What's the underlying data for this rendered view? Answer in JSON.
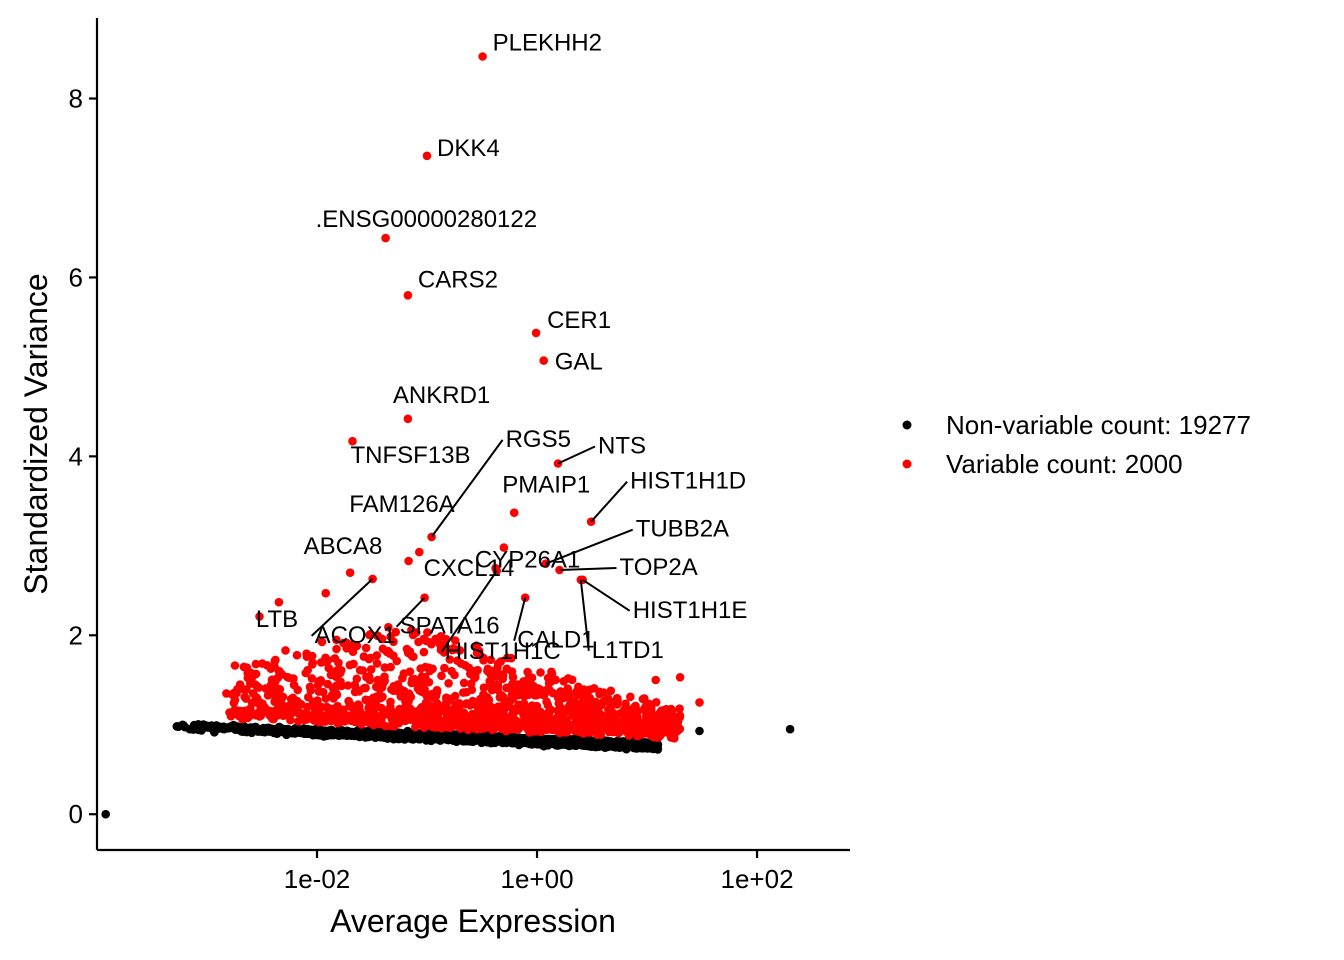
{
  "chart_data": {
    "type": "scatter",
    "xlabel": "Average Expression",
    "ylabel": "Standardized Variance",
    "x_scale": "log10",
    "xlim": [
      0.0001,
      700
    ],
    "ylim": [
      -0.4,
      8.9
    ],
    "x_ticks": [
      {
        "value": 0.01,
        "label": "1e-02"
      },
      {
        "value": 1,
        "label": "1e+00"
      },
      {
        "value": 100,
        "label": "1e+02"
      }
    ],
    "y_ticks": [
      {
        "value": 0,
        "label": "0"
      },
      {
        "value": 2,
        "label": "2"
      },
      {
        "value": 4,
        "label": "4"
      },
      {
        "value": 6,
        "label": "6"
      },
      {
        "value": 8,
        "label": "8"
      }
    ],
    "grid": false,
    "legend_position": "right",
    "series": [
      {
        "name": "Non-variable count: 19277",
        "color": "#000000"
      },
      {
        "name": "Variable count: 2000",
        "color": "#ff0000"
      }
    ],
    "labeled_points": [
      {
        "label": "PLEKHH2",
        "x": 0.32,
        "y": 8.47
      },
      {
        "label": "DKK4",
        "x": 0.1,
        "y": 7.36
      },
      {
        "label": ".ENSG00000280122",
        "x": 0.042,
        "y": 6.44
      },
      {
        "label": "CARS2",
        "x": 0.067,
        "y": 5.8
      },
      {
        "label": "CER1",
        "x": 0.98,
        "y": 5.38
      },
      {
        "label": "GAL",
        "x": 1.15,
        "y": 5.07
      },
      {
        "label": "ANKRD1",
        "x": 0.067,
        "y": 4.42
      },
      {
        "label": "TNFSF13B",
        "x": 0.021,
        "y": 4.17
      },
      {
        "label": "NTS",
        "x": 1.55,
        "y": 3.92
      },
      {
        "label": "RGS5",
        "x": 0.11,
        "y": 3.1
      },
      {
        "label": "FAM126A",
        "x": 0.085,
        "y": 2.93
      },
      {
        "label": "PMAIP1",
        "x": 0.62,
        "y": 3.37
      },
      {
        "label": "HIST1H1D",
        "x": 3.1,
        "y": 3.27
      },
      {
        "label": "CYP26A1",
        "x": 0.5,
        "y": 2.98
      },
      {
        "label": "TUBB2A",
        "x": 1.2,
        "y": 2.8
      },
      {
        "label": "ABCA8",
        "x": 0.068,
        "y": 2.83
      },
      {
        "label": "CXCL14",
        "x": 0.42,
        "y": 2.75
      },
      {
        "label": "TOP2A",
        "x": 1.6,
        "y": 2.73
      },
      {
        "label": "LTB",
        "x": 0.0045,
        "y": 2.37
      },
      {
        "label": "SPATA16",
        "x": 0.095,
        "y": 2.42
      },
      {
        "label": "CALD1",
        "x": 0.78,
        "y": 2.42
      },
      {
        "label": "HIST1H1E",
        "x": 2.6,
        "y": 2.62
      },
      {
        "label": "ACOX1",
        "x": 0.032,
        "y": 2.63
      },
      {
        "label": "HIST1H1C",
        "x": 0.43,
        "y": 2.72
      },
      {
        "label": "L1TD1",
        "x": 2.5,
        "y": 2.62
      }
    ]
  }
}
